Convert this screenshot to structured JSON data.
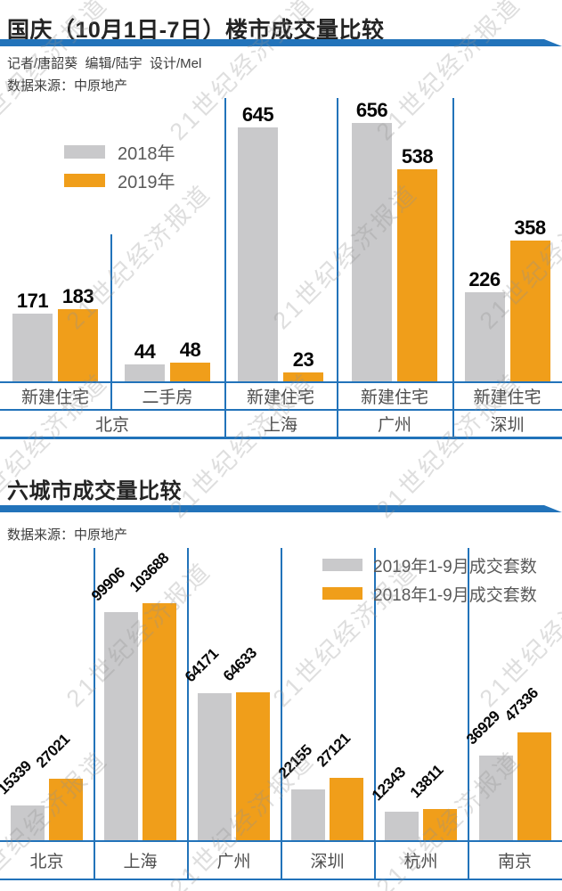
{
  "page": {
    "watermark_text": "21世纪经济报道"
  },
  "colors": {
    "bar_gray": "#C9C9CB",
    "bar_orange": "#F09E1A",
    "line_blue": "#2273BA"
  },
  "chart1": {
    "title": "国庆（10月1日-7日）楼市成交量比较",
    "byline": "记者/唐韶葵  编辑/陆宇  设计/Mel",
    "source": "数据来源：中原地产",
    "legend": [
      {
        "label": "2018年",
        "color": "#C9C9CB"
      },
      {
        "label": "2019年",
        "color": "#F09E1A"
      }
    ]
  },
  "chart2": {
    "title": "六城市成交量比较",
    "source": "数据来源：中原地产",
    "legend": [
      {
        "label": "2019年1-9月成交套数",
        "color": "#C9C9CB"
      },
      {
        "label": "2018年1-9月成交套数",
        "color": "#F09E1A"
      }
    ]
  },
  "chart_data": [
    {
      "type": "bar",
      "title": "国庆（10月1日-7日）楼市成交量比较",
      "categories": [
        "新建住宅",
        "二手房",
        "新建住宅",
        "新建住宅",
        "新建住宅"
      ],
      "city_groups": [
        {
          "label": "北京",
          "span": 2
        },
        {
          "label": "上海",
          "span": 1
        },
        {
          "label": "广州",
          "span": 1
        },
        {
          "label": "深圳",
          "span": 1
        }
      ],
      "series": [
        {
          "name": "2018年",
          "color": "#C9C9CB",
          "values": [
            171,
            44,
            645,
            656,
            226
          ]
        },
        {
          "name": "2019年",
          "color": "#F09E1A",
          "values": [
            183,
            48,
            23,
            538,
            358
          ]
        }
      ],
      "ylim": [
        0,
        700
      ],
      "grid": false,
      "legend_position": "upper-left",
      "value_labels": "above-bars"
    },
    {
      "type": "bar",
      "title": "六城市成交量比较",
      "categories": [
        "北京",
        "上海",
        "广州",
        "深圳",
        "杭州",
        "南京"
      ],
      "series": [
        {
          "name": "2019年1-9月成交套数",
          "color": "#C9C9CB",
          "values": [
            15339,
            99906,
            64171,
            22155,
            12343,
            36929
          ]
        },
        {
          "name": "2018年1-9月成交套数",
          "color": "#F09E1A",
          "values": [
            27021,
            103688,
            64633,
            27121,
            13811,
            47336
          ]
        }
      ],
      "ylim": [
        0,
        110000
      ],
      "grid": false,
      "legend_position": "upper-right",
      "value_labels": "above-bars-rotated-45"
    }
  ]
}
